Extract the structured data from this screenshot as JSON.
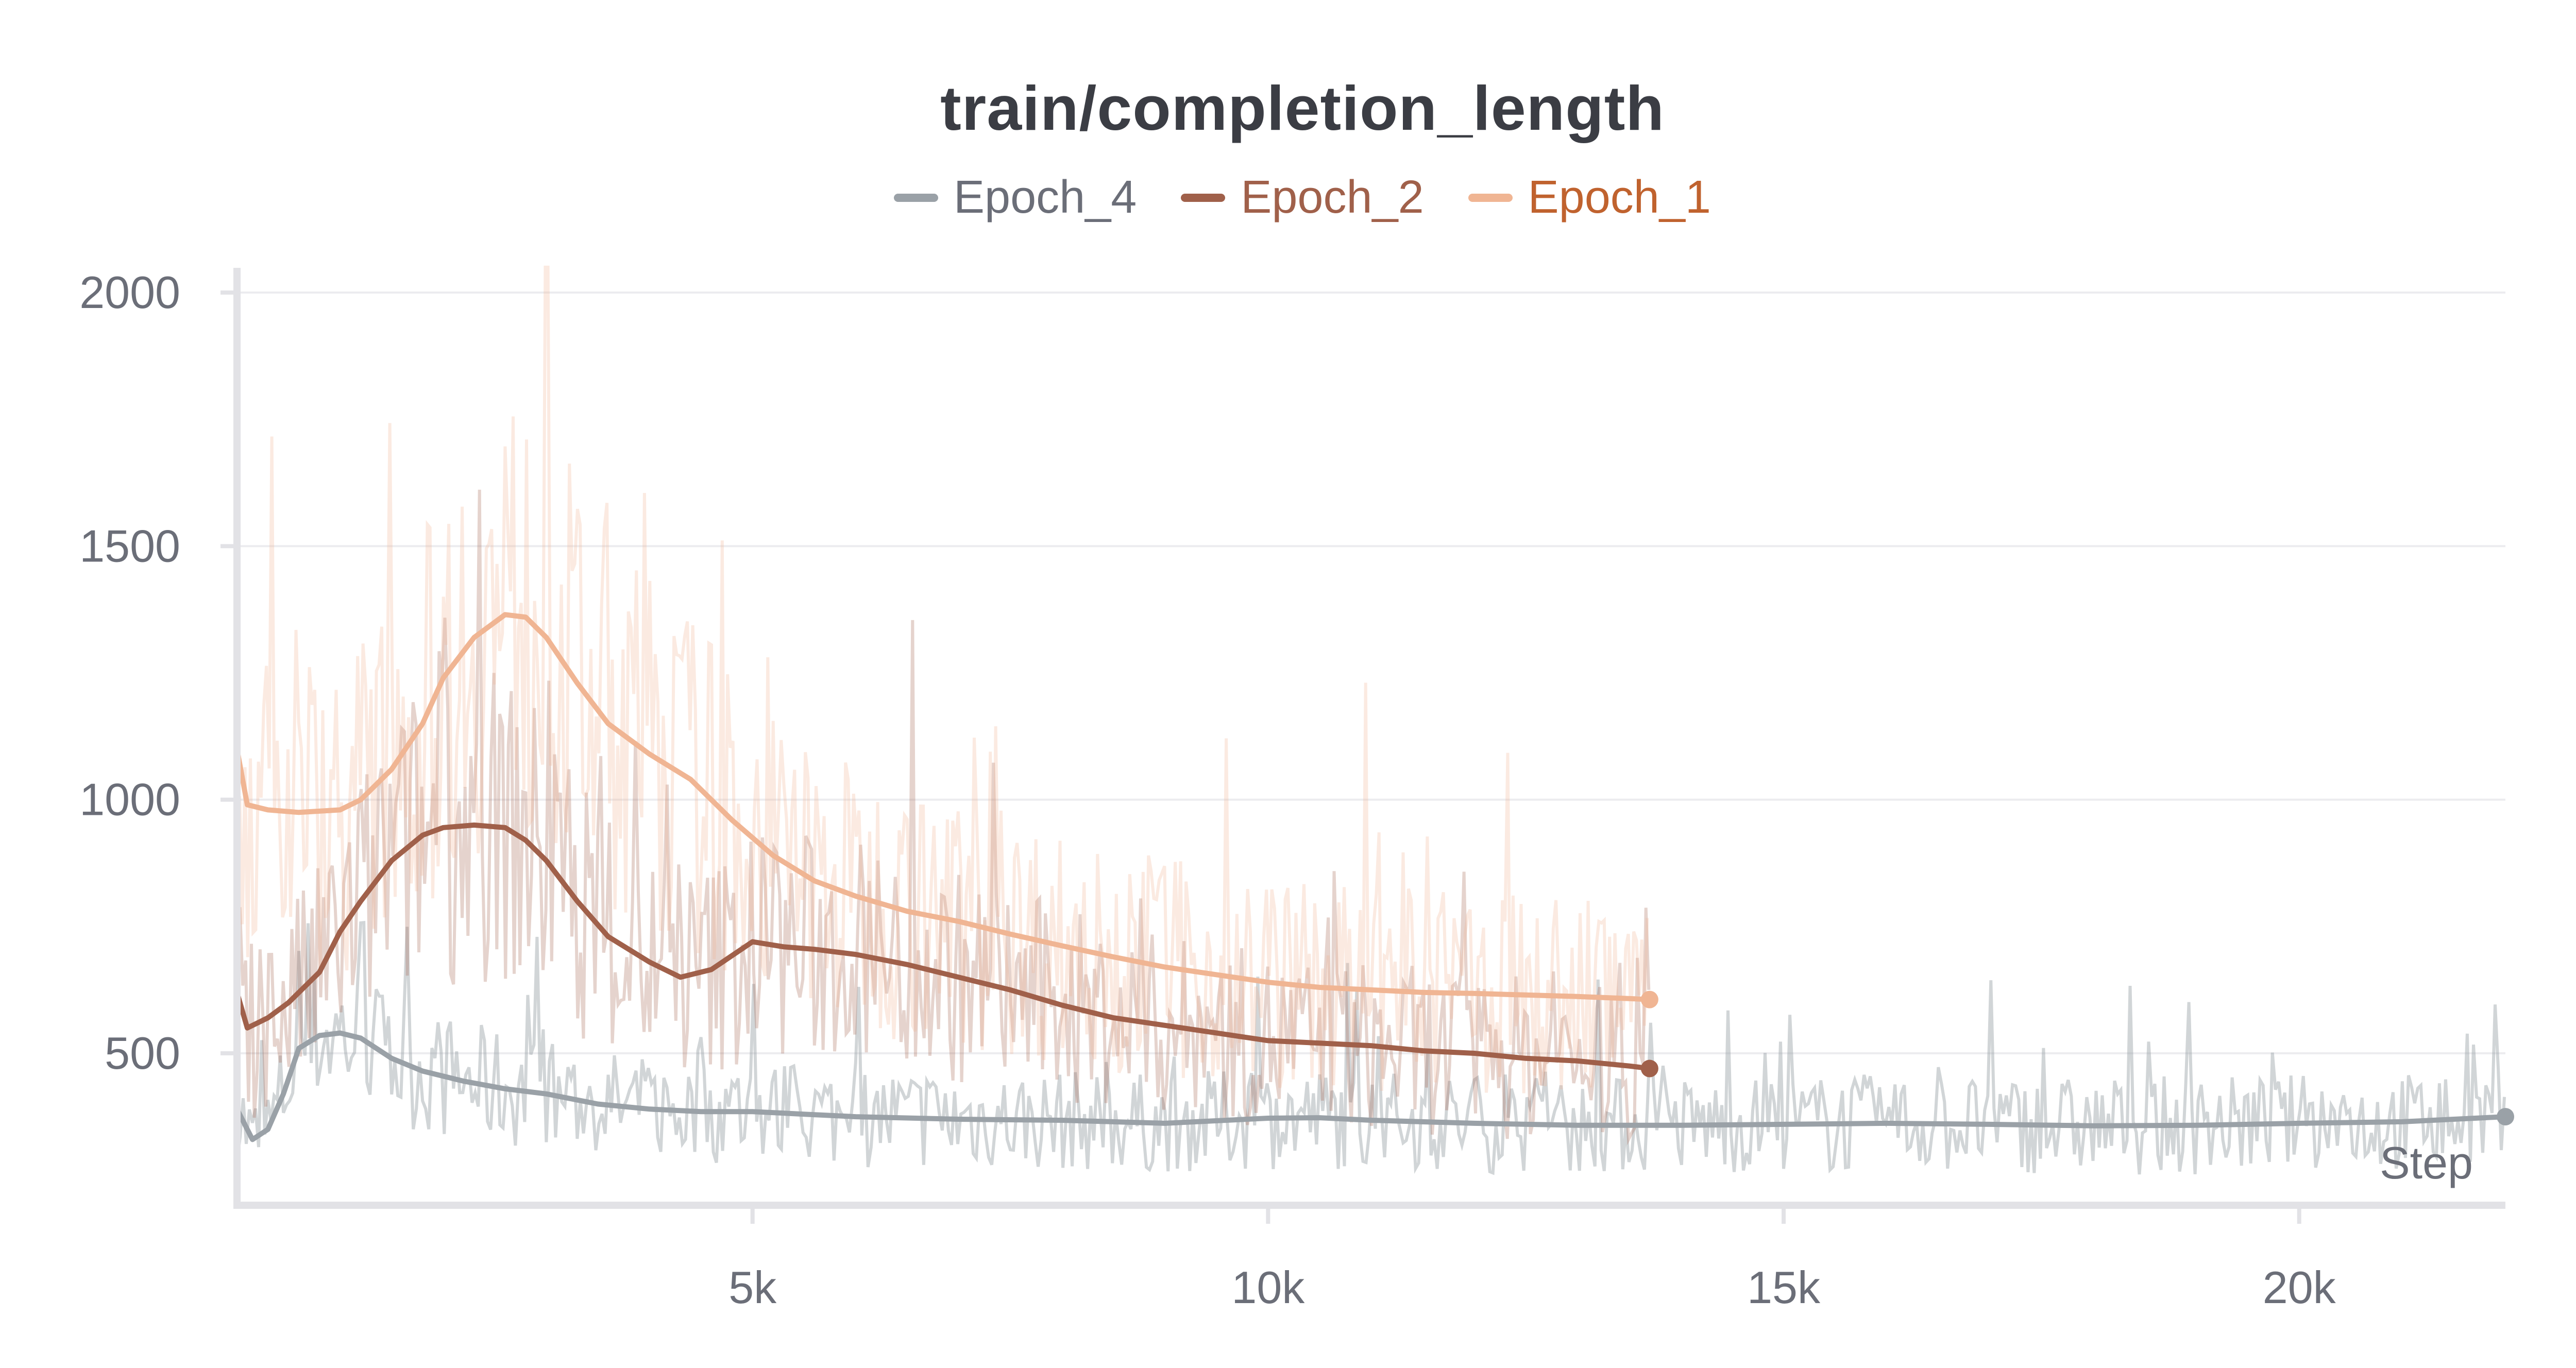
{
  "chart_data": {
    "type": "line",
    "title": "train/completion_length",
    "xlabel": "Step",
    "ylabel": "",
    "xlim": [
      0,
      22000
    ],
    "ylim": [
      200,
      2050
    ],
    "x_ticks": [
      5000,
      10000,
      15000,
      20000
    ],
    "x_tick_labels": [
      "5k",
      "10k",
      "15k",
      "20k"
    ],
    "y_ticks": [
      500,
      1000,
      1500,
      2000
    ],
    "y_tick_labels": [
      "500",
      "1000",
      "1500",
      "2000"
    ],
    "grid": true,
    "legend_position": "top-center",
    "series": [
      {
        "name": "Epoch_4",
        "color": "#9aa1a7",
        "label_color": "#6b6e78",
        "x": [
          0,
          150,
          300,
          450,
          600,
          800,
          1000,
          1200,
          1500,
          1800,
          2200,
          2600,
          3000,
          3500,
          4000,
          4500,
          5000,
          5500,
          6000,
          7000,
          8000,
          9000,
          10000,
          10500,
          11000,
          12000,
          13000,
          14000,
          15000,
          16000,
          17000,
          18000,
          19000,
          20000,
          21000,
          22000
        ],
        "values": [
          390,
          330,
          350,
          420,
          510,
          535,
          540,
          530,
          490,
          465,
          445,
          430,
          420,
          400,
          390,
          385,
          385,
          380,
          375,
          370,
          368,
          362,
          372,
          373,
          368,
          362,
          358,
          358,
          360,
          362,
          360,
          357,
          358,
          362,
          365,
          375
        ]
      },
      {
        "name": "Epoch_2",
        "color": "#a0604a",
        "label_color": "#a0604a",
        "x": [
          0,
          100,
          300,
          500,
          800,
          1000,
          1200,
          1500,
          1800,
          2000,
          2300,
          2600,
          2800,
          3000,
          3300,
          3600,
          4000,
          4300,
          4600,
          5000,
          5300,
          5600,
          6000,
          6500,
          7000,
          7500,
          8000,
          8500,
          9000,
          9500,
          10000,
          10500,
          11000,
          11500,
          12000,
          12500,
          13000,
          13500,
          13700
        ],
        "values": [
          620,
          550,
          570,
          600,
          660,
          740,
          800,
          880,
          930,
          945,
          950,
          945,
          920,
          880,
          800,
          730,
          680,
          650,
          665,
          720,
          710,
          705,
          695,
          675,
          650,
          625,
          595,
          570,
          555,
          540,
          525,
          520,
          515,
          505,
          500,
          490,
          485,
          475,
          470
        ]
      },
      {
        "name": "Epoch_1",
        "color": "#f0b593",
        "label_color": "#c0622e",
        "x": [
          0,
          100,
          300,
          600,
          1000,
          1200,
          1500,
          1800,
          2000,
          2300,
          2600,
          2800,
          3000,
          3300,
          3600,
          4000,
          4400,
          4800,
          5200,
          5600,
          6000,
          6500,
          7000,
          7500,
          8000,
          8500,
          9000,
          9500,
          10000,
          10500,
          11000,
          11500,
          12000,
          12500,
          13000,
          13500,
          13700
        ],
        "values": [
          1100,
          990,
          980,
          975,
          980,
          1000,
          1060,
          1150,
          1240,
          1320,
          1365,
          1360,
          1320,
          1230,
          1150,
          1090,
          1040,
          960,
          890,
          840,
          810,
          780,
          760,
          735,
          712,
          690,
          670,
          655,
          640,
          630,
          625,
          620,
          618,
          615,
          612,
          608,
          606
        ]
      }
    ]
  }
}
